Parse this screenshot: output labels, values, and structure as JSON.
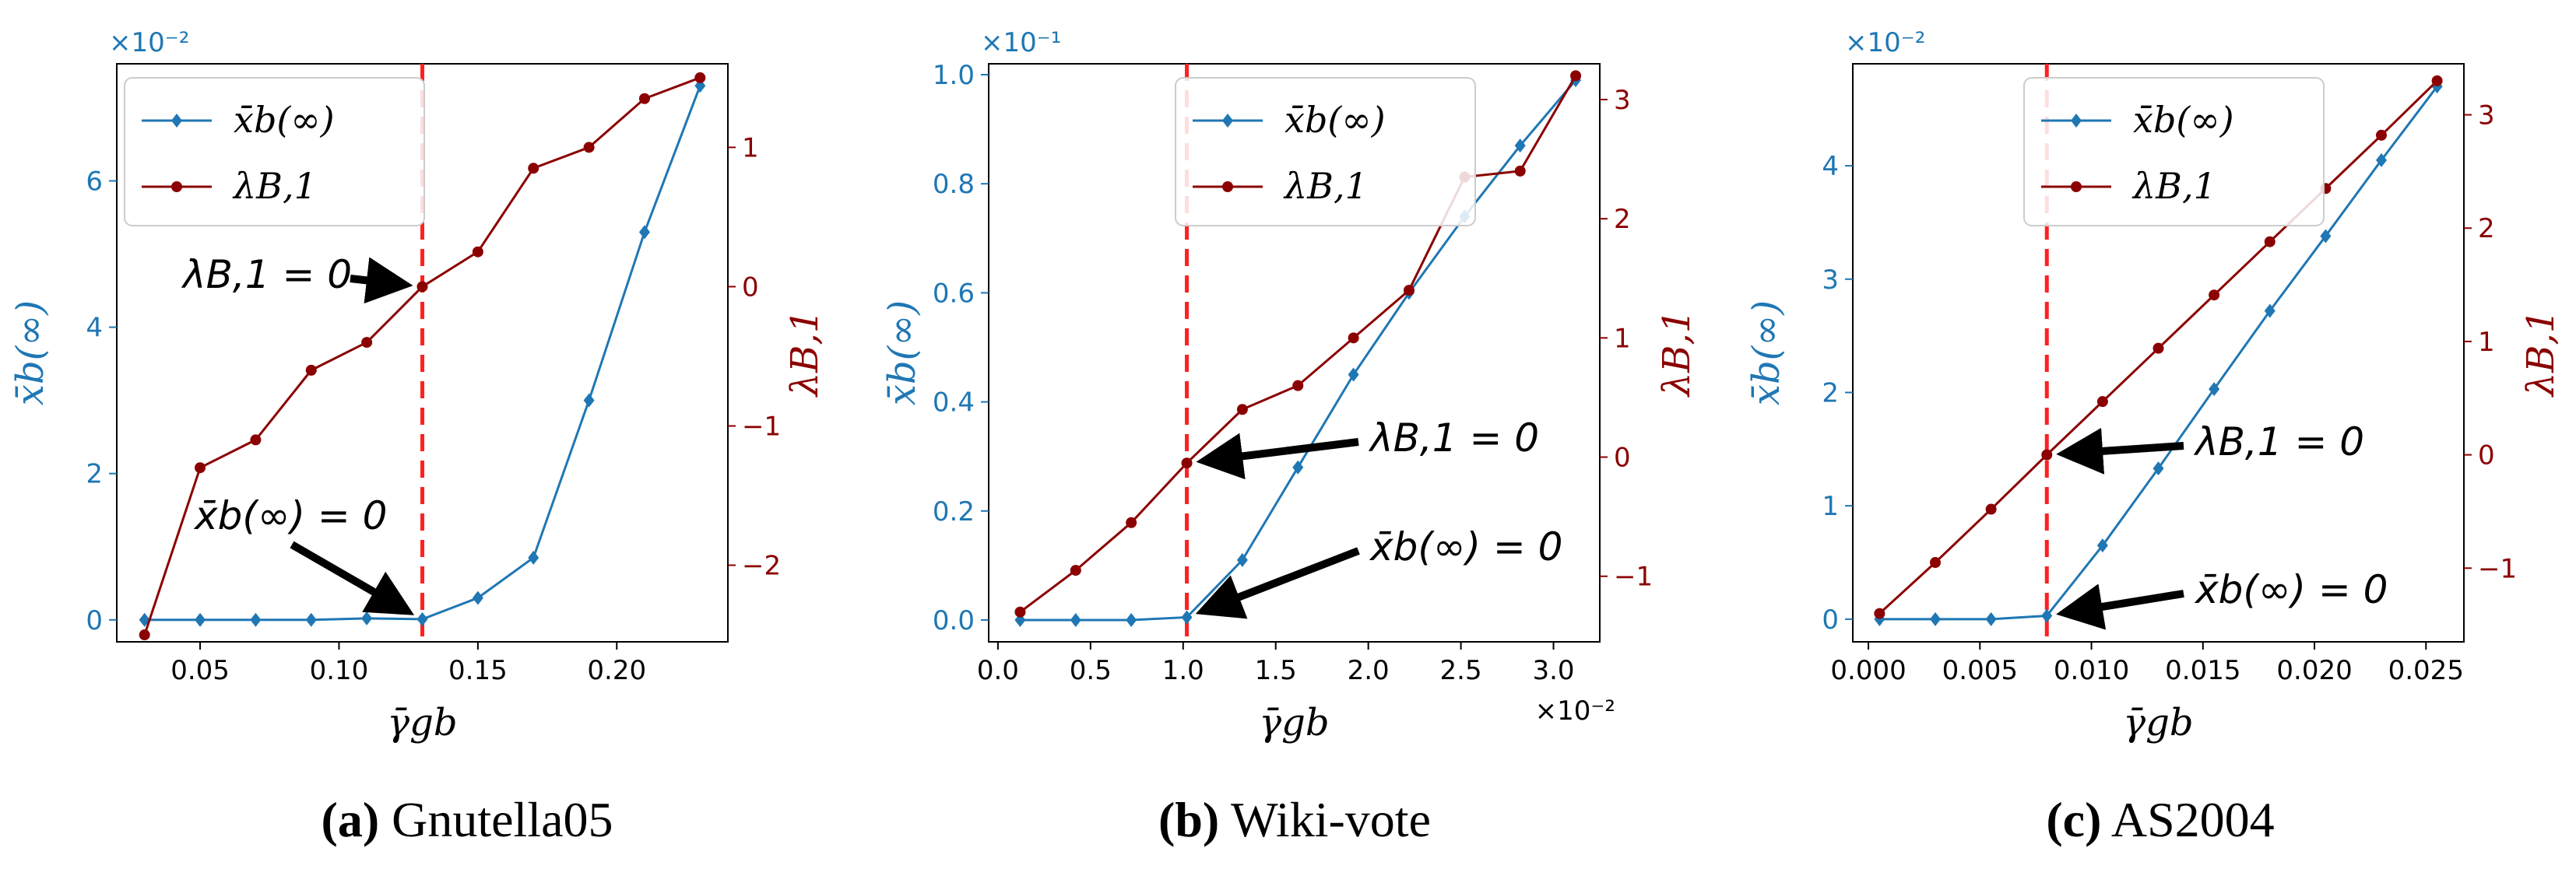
{
  "colors": {
    "blue": "#1f77b4",
    "darkred": "#8b0000",
    "vline": "#ff2020",
    "axis": "#000000"
  },
  "chart_data": [
    {
      "type": "line",
      "caption_letter": "(a)",
      "caption_name": "Gnutella05",
      "xlabel": "γ̄gb",
      "ylabel_left": "x̄b(∞)",
      "ylabel_right": "λB,1",
      "left_exponent": "×10⁻²",
      "x_exponent": "",
      "xlim": [
        0.02,
        0.24
      ],
      "ylim_left": [
        -0.3,
        7.6
      ],
      "ylim_right": [
        -2.55,
        1.6
      ],
      "xticks": [
        0.05,
        0.1,
        0.15,
        0.2
      ],
      "xtick_labels": [
        "0.05",
        "0.10",
        "0.15",
        "0.20"
      ],
      "yticks_left": [
        0,
        2,
        4,
        6
      ],
      "ytick_labels_left": [
        "0",
        "2",
        "4",
        "6"
      ],
      "yticks_right": [
        -2,
        -1,
        0,
        1
      ],
      "ytick_labels_right": [
        "−2",
        "−1",
        "0",
        "1"
      ],
      "vline_x": 0.13,
      "legend": [
        "x̄b(∞)",
        "λB,1"
      ],
      "series": [
        {
          "name": "x̄b(∞)",
          "axis": "left",
          "x": [
            0.03,
            0.05,
            0.07,
            0.09,
            0.11,
            0.13,
            0.15,
            0.17,
            0.19,
            0.21,
            0.23
          ],
          "y": [
            0,
            0,
            0,
            0,
            0.02,
            0.01,
            0.3,
            0.85,
            3.0,
            5.3,
            7.3
          ]
        },
        {
          "name": "λB,1",
          "axis": "right",
          "x": [
            0.03,
            0.05,
            0.07,
            0.09,
            0.11,
            0.13,
            0.15,
            0.17,
            0.19,
            0.21,
            0.23
          ],
          "y": [
            -2.5,
            -1.3,
            -1.1,
            -0.6,
            -0.4,
            0.0,
            0.25,
            0.85,
            1.0,
            1.35,
            1.5
          ]
        }
      ],
      "annotations": [
        {
          "text": "λB,1 = 0",
          "target": [
            0.13,
            0.0
          ],
          "target_axis": "right"
        },
        {
          "text": "x̄b(∞) = 0",
          "target": [
            0.13,
            0.0
          ],
          "target_axis": "left"
        }
      ]
    },
    {
      "type": "line",
      "caption_letter": "(b)",
      "caption_name": "Wiki-vote",
      "xlabel": "γ̄gb",
      "ylabel_left": "x̄b(∞)",
      "ylabel_right": "λB,1",
      "left_exponent": "×10⁻¹",
      "x_exponent": "×10⁻²",
      "xlim": [
        -0.05,
        3.25
      ],
      "ylim_left": [
        -0.04,
        1.02
      ],
      "ylim_right": [
        -1.55,
        3.3
      ],
      "xticks": [
        0.0,
        0.5,
        1.0,
        1.5,
        2.0,
        2.5,
        3.0
      ],
      "xtick_labels": [
        "0.0",
        "0.5",
        "1.0",
        "1.5",
        "2.0",
        "2.5",
        "3.0"
      ],
      "yticks_left": [
        0.0,
        0.2,
        0.4,
        0.6,
        0.8,
        1.0
      ],
      "ytick_labels_left": [
        "0.0",
        "0.2",
        "0.4",
        "0.6",
        "0.8",
        "1.0"
      ],
      "yticks_right": [
        -1,
        0,
        1,
        2,
        3
      ],
      "ytick_labels_right": [
        "−1",
        "0",
        "1",
        "2",
        "3"
      ],
      "vline_x": 1.02,
      "legend": [
        "x̄b(∞)",
        "λB,1"
      ],
      "series": [
        {
          "name": "x̄b(∞)",
          "axis": "left",
          "x": [
            0.12,
            0.42,
            0.72,
            1.02,
            1.32,
            1.62,
            1.92,
            2.22,
            2.52,
            2.82,
            3.12
          ],
          "y": [
            0,
            0,
            0,
            0.005,
            0.11,
            0.28,
            0.45,
            0.6,
            0.74,
            0.87,
            0.99
          ]
        },
        {
          "name": "λB,1",
          "axis": "right",
          "x": [
            0.12,
            0.42,
            0.72,
            1.02,
            1.32,
            1.62,
            1.92,
            2.22,
            2.52,
            2.82,
            3.12
          ],
          "y": [
            -1.3,
            -0.95,
            -0.55,
            -0.05,
            0.4,
            0.6,
            1.0,
            1.4,
            2.35,
            2.4,
            3.2
          ]
        }
      ],
      "annotations": [
        {
          "text": "λB,1 = 0",
          "target": [
            1.02,
            -0.05
          ],
          "target_axis": "right"
        },
        {
          "text": "x̄b(∞) = 0",
          "target": [
            1.02,
            0.005
          ],
          "target_axis": "left"
        }
      ]
    },
    {
      "type": "line",
      "caption_letter": "(c)",
      "caption_name": "AS2004",
      "xlabel": "γ̄gb",
      "ylabel_left": "x̄b(∞)",
      "ylabel_right": "λB,1",
      "left_exponent": "×10⁻²",
      "x_exponent": "",
      "xlim": [
        -0.0007,
        0.0267
      ],
      "ylim_left": [
        -0.2,
        4.9
      ],
      "ylim_right": [
        -1.65,
        3.45
      ],
      "xticks": [
        0.0,
        0.005,
        0.01,
        0.015,
        0.02,
        0.025
      ],
      "xtick_labels": [
        "0.000",
        "0.005",
        "0.010",
        "0.015",
        "0.020",
        "0.025"
      ],
      "yticks_left": [
        0,
        1,
        2,
        3,
        4
      ],
      "ytick_labels_left": [
        "0",
        "1",
        "2",
        "3",
        "4"
      ],
      "yticks_right": [
        -1,
        0,
        1,
        2,
        3
      ],
      "ytick_labels_right": [
        "−1",
        "0",
        "1",
        "2",
        "3"
      ],
      "vline_x": 0.008,
      "legend": [
        "x̄b(∞)",
        "λB,1"
      ],
      "series": [
        {
          "name": "x̄b(∞)",
          "axis": "left",
          "x": [
            0.0005,
            0.003,
            0.0055,
            0.008,
            0.0105,
            0.013,
            0.0155,
            0.018,
            0.0205,
            0.023,
            0.0255
          ],
          "y": [
            0,
            0,
            0,
            0.03,
            0.65,
            1.33,
            2.03,
            2.72,
            3.38,
            4.05,
            4.7
          ]
        },
        {
          "name": "λB,1",
          "axis": "right",
          "x": [
            0.0005,
            0.003,
            0.0055,
            0.008,
            0.0105,
            0.013,
            0.0155,
            0.018,
            0.0205,
            0.023,
            0.0255
          ],
          "y": [
            -1.4,
            -0.95,
            -0.48,
            0.0,
            0.47,
            0.94,
            1.41,
            1.88,
            2.35,
            2.82,
            3.3
          ]
        }
      ],
      "annotations": [
        {
          "text": "λB,1 = 0",
          "target": [
            0.008,
            0.0
          ],
          "target_axis": "right"
        },
        {
          "text": "x̄b(∞) = 0",
          "target": [
            0.008,
            0.03
          ],
          "target_axis": "left"
        }
      ]
    }
  ]
}
